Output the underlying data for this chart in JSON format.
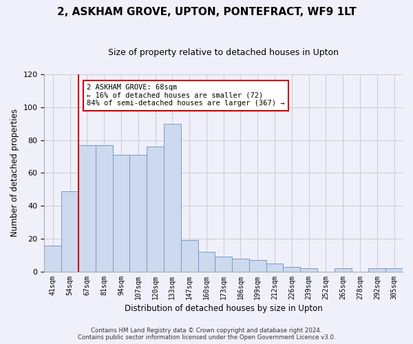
{
  "title": "2, ASKHAM GROVE, UPTON, PONTEFRACT, WF9 1LT",
  "subtitle": "Size of property relative to detached houses in Upton",
  "xlabel": "Distribution of detached houses by size in Upton",
  "ylabel": "Number of detached properties",
  "bar_labels": [
    "41sqm",
    "54sqm",
    "67sqm",
    "81sqm",
    "94sqm",
    "107sqm",
    "120sqm",
    "133sqm",
    "147sqm",
    "160sqm",
    "173sqm",
    "186sqm",
    "199sqm",
    "212sqm",
    "226sqm",
    "239sqm",
    "252sqm",
    "265sqm",
    "278sqm",
    "292sqm",
    "305sqm"
  ],
  "bar_heights": [
    16,
    49,
    77,
    77,
    71,
    71,
    76,
    90,
    19,
    12,
    9,
    8,
    7,
    5,
    3,
    2,
    0,
    2,
    0,
    2,
    2
  ],
  "bar_color": "#ccd9ee",
  "bar_edge_color": "#7799cc",
  "annotation_text": "2 ASKHAM GROVE: 68sqm\n← 16% of detached houses are smaller (72)\n84% of semi-detached houses are larger (367) →",
  "annotation_box_color": "#ffffff",
  "annotation_box_edge": "#cc0000",
  "red_line_color": "#cc0000",
  "footer1": "Contains HM Land Registry data © Crown copyright and database right 2024.",
  "footer2": "Contains public sector information licensed under the Open Government Licence v3.0.",
  "ylim": [
    0,
    120
  ],
  "yticks": [
    0,
    20,
    40,
    60,
    80,
    100,
    120
  ],
  "background_color": "#f0f0fa",
  "grid_color": "#ccccdd",
  "title_fontsize": 11,
  "subtitle_fontsize": 9
}
